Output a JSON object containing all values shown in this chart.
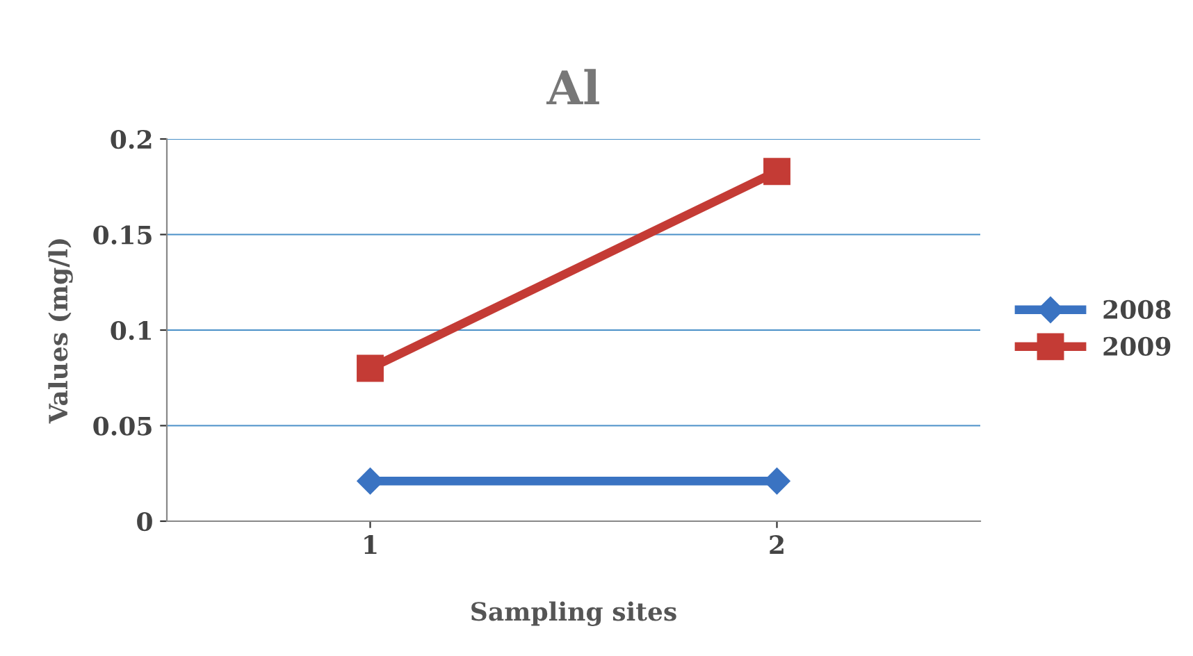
{
  "chart_data": {
    "type": "line",
    "title": "Al",
    "xlabel": "Sampling sites",
    "ylabel": "Values (mg/l)",
    "categories": [
      "1",
      "2"
    ],
    "series": [
      {
        "name": "2008",
        "color": "#3a73c2",
        "values": [
          0.021,
          0.021
        ],
        "marker": "diamond"
      },
      {
        "name": "2009",
        "color": "#c43b35",
        "values": [
          0.08,
          0.183
        ],
        "marker": "square"
      }
    ],
    "ylim": [
      0,
      0.2
    ],
    "yticks": [
      0,
      0.05,
      0.1,
      0.15,
      0.2
    ],
    "grid": "y",
    "legend": "right"
  }
}
